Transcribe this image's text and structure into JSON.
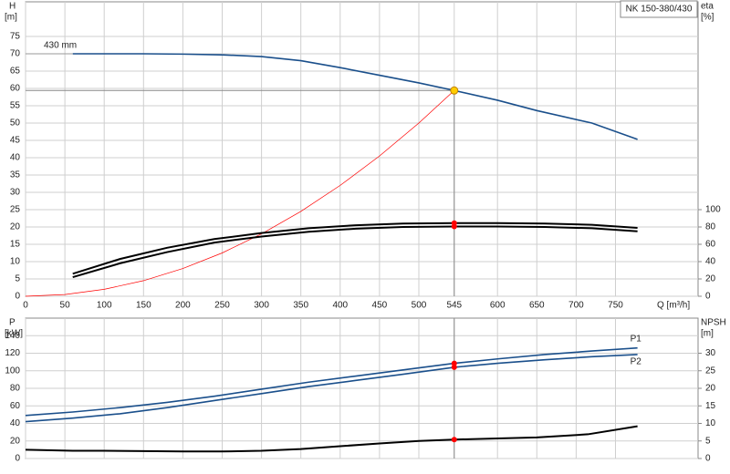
{
  "chart_data": [
    {
      "type": "line",
      "title": "NK 150-380/430",
      "x_label": "Q [m³/h]",
      "y_label": "H",
      "y_unit": "[m]",
      "y2_label": "eta",
      "y2_unit": "[%]",
      "xlim": [
        0,
        855
      ],
      "xticks": [
        0,
        50,
        100,
        150,
        200,
        250,
        300,
        350,
        400,
        450,
        500,
        545,
        600,
        650,
        700,
        750
      ],
      "ylim": [
        0,
        85
      ],
      "yticks": [
        0,
        5,
        10,
        15,
        20,
        25,
        30,
        35,
        40,
        45,
        50,
        55,
        60,
        65,
        70,
        75
      ],
      "y2lim": [
        0,
        340
      ],
      "y2ticks": [
        0,
        20,
        40,
        60,
        80,
        100
      ],
      "grid": true,
      "series": [
        {
          "name": "430 mm",
          "color": "#1a4f8b",
          "x": [
            60,
            100,
            150,
            200,
            250,
            300,
            350,
            400,
            450,
            500,
            545,
            600,
            650,
            720,
            778
          ],
          "values": [
            70,
            70,
            70,
            69.9,
            69.7,
            69.2,
            68,
            66,
            63.8,
            61.6,
            59.4,
            56.6,
            53.6,
            50,
            45.3
          ]
        },
        {
          "color": "#ff0000",
          "x": [
            0,
            50,
            100,
            150,
            200,
            250,
            300,
            350,
            400,
            450,
            500,
            545
          ],
          "values": [
            0,
            0.5,
            2,
            4.5,
            8,
            12.5,
            18,
            24.5,
            32,
            40.5,
            50,
            59.4
          ]
        },
        {
          "color": "#000000",
          "axis": "y2",
          "x": [
            60,
            120,
            180,
            240,
            300,
            360,
            420,
            480,
            545,
            600,
            660,
            720,
            778
          ],
          "values": [
            26,
            43,
            56,
            66,
            73,
            78.5,
            82,
            84,
            84.5,
            84.5,
            84,
            82.5,
            79
          ]
        },
        {
          "color": "#000000",
          "axis": "y2",
          "x": [
            60,
            120,
            180,
            240,
            300,
            360,
            420,
            480,
            545,
            600,
            660,
            720,
            778
          ],
          "values": [
            22,
            38,
            51,
            62,
            69,
            74.5,
            78,
            80,
            80.5,
            80.5,
            80,
            78.5,
            75
          ]
        }
      ],
      "markers": [
        {
          "x": 545,
          "y": 59.4,
          "color": "#ffcc00"
        },
        {
          "x": 545,
          "y": 84.5,
          "axis": "y2",
          "color": "#ff0000"
        },
        {
          "x": 545,
          "y": 80.5,
          "axis": "y2",
          "color": "#ff0000"
        }
      ]
    },
    {
      "type": "line",
      "y_label": "P",
      "y_unit": "[kW]",
      "y2_label": "NPSH",
      "y2_unit": "[m]",
      "ylim": [
        0,
        160
      ],
      "yticks": [
        0,
        20,
        40,
        60,
        80,
        100,
        120,
        140
      ],
      "y2lim": [
        0,
        40
      ],
      "y2ticks": [
        0,
        5,
        10,
        15,
        20,
        25,
        30
      ],
      "grid": true,
      "series": [
        {
          "name": "P1",
          "color": "#1a4f8b",
          "x": [
            0,
            60,
            120,
            180,
            240,
            300,
            360,
            420,
            480,
            545,
            600,
            660,
            720,
            778
          ],
          "values": [
            49,
            53,
            58,
            64,
            71,
            79,
            87,
            94,
            101,
            108.5,
            113.5,
            118.5,
            122.5,
            126
          ]
        },
        {
          "name": "P2",
          "color": "#1a4f8b",
          "x": [
            0,
            60,
            120,
            180,
            240,
            300,
            360,
            420,
            480,
            545,
            600,
            660,
            720,
            778
          ],
          "values": [
            42,
            46,
            51,
            58,
            66,
            74,
            82,
            89,
            96,
            104,
            108.5,
            112.5,
            116,
            118.5
          ]
        },
        {
          "color": "#000000",
          "axis": "y2",
          "x": [
            0,
            60,
            100,
            150,
            200,
            250,
            300,
            350,
            400,
            450,
            500,
            545,
            600,
            650,
            715,
            778
          ],
          "values": [
            2.5,
            2.2,
            2.2,
            2.1,
            2,
            2,
            2.2,
            2.7,
            3.5,
            4.3,
            5,
            5.4,
            5.7,
            6,
            6.9,
            9.2
          ]
        }
      ],
      "markers": [
        {
          "x": 545,
          "y": 108.5,
          "color": "#ff0000"
        },
        {
          "x": 545,
          "y": 104,
          "color": "#ff0000"
        },
        {
          "x": 545,
          "y": 5.4,
          "axis": "y2",
          "color": "#ff0000"
        }
      ]
    }
  ]
}
